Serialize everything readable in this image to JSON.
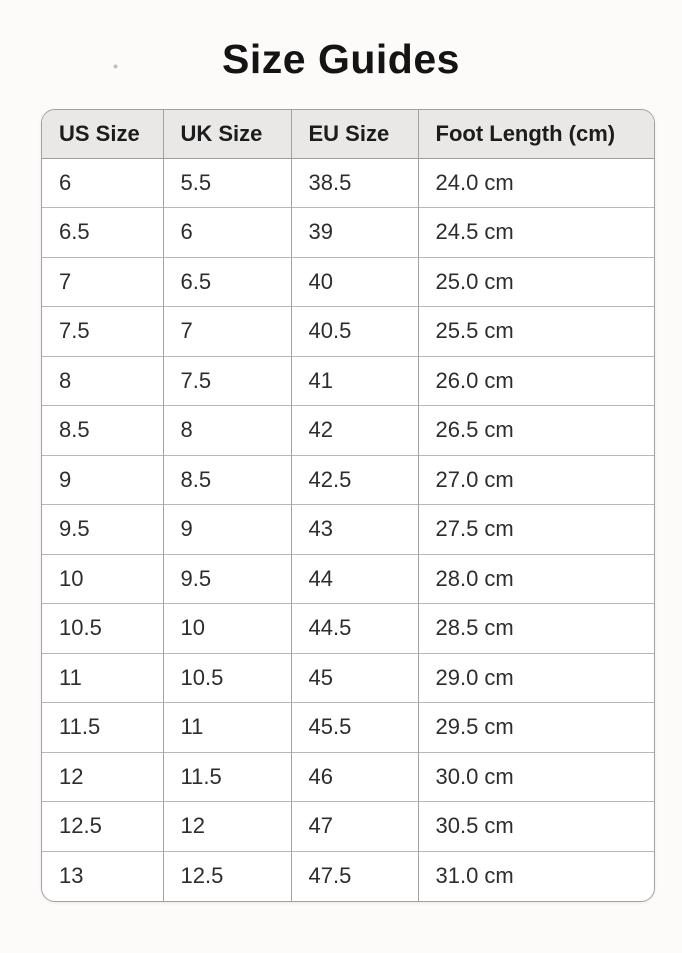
{
  "page": {
    "title": "Size Guides"
  },
  "table": {
    "headers": [
      "US Size",
      "UK Size",
      "EU Size",
      "Foot Length (cm)"
    ],
    "rows": [
      [
        "6",
        "5.5",
        "38.5",
        "24.0 cm"
      ],
      [
        "6.5",
        "6",
        "39",
        "24.5 cm"
      ],
      [
        "7",
        "6.5",
        "40",
        "25.0 cm"
      ],
      [
        "7.5",
        "7",
        "40.5",
        "25.5 cm"
      ],
      [
        "8",
        "7.5",
        "41",
        "26.0 cm"
      ],
      [
        "8.5",
        "8",
        "42",
        "26.5 cm"
      ],
      [
        "9",
        "8.5",
        "42.5",
        "27.0 cm"
      ],
      [
        "9.5",
        "9",
        "43",
        "27.5 cm"
      ],
      [
        "10",
        "9.5",
        "44",
        "28.0 cm"
      ],
      [
        "10.5",
        "10",
        "44.5",
        "28.5 cm"
      ],
      [
        "11",
        "10.5",
        "45",
        "29.0 cm"
      ],
      [
        "11.5",
        "11",
        "45.5",
        "29.5 cm"
      ],
      [
        "12",
        "11.5",
        "46",
        "30.0 cm"
      ],
      [
        "12.5",
        "12",
        "47",
        "30.5 cm"
      ],
      [
        "13",
        "12.5",
        "47.5",
        "31.0 cm"
      ]
    ]
  },
  "colors": {
    "page_bg": "#fcfbfa",
    "header_bg": "#e9e8e6",
    "border_strong": "#a3a2a1",
    "border_light": "#b8b7b5",
    "title_text": "#141414",
    "header_text": "#1c1c1c",
    "cell_text": "#2d2d2d",
    "hairline": "#e7e4e1"
  }
}
